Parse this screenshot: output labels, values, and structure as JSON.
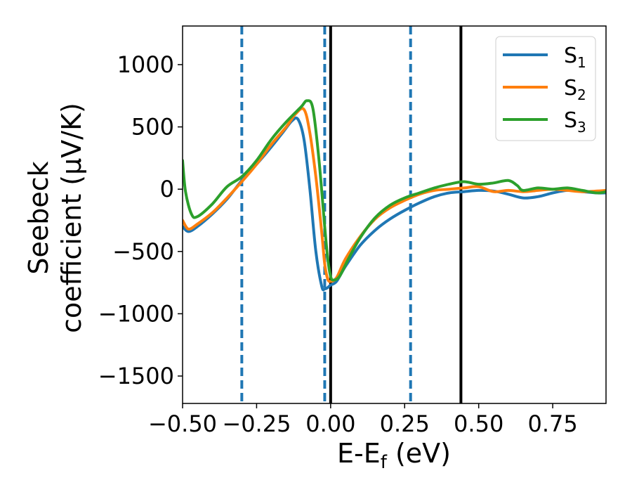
{
  "chart_data": {
    "type": "line",
    "xlabel": "E-E",
    "xlabel_sub": "f",
    "xlabel_unit": " (eV)",
    "ylabel_line1": "Seebeck",
    "ylabel_line2": "coefficient  (μV/K)",
    "xlim": [
      -0.5,
      0.93
    ],
    "ylim": [
      -1720,
      1310
    ],
    "x_ticks": [
      -0.5,
      -0.25,
      0.0,
      0.25,
      0.5,
      0.75
    ],
    "x_tick_labels": [
      "−0.50",
      "−0.25",
      "0.00",
      "0.25",
      "0.50",
      "0.75"
    ],
    "y_ticks": [
      -1500,
      -1000,
      -500,
      0,
      500,
      1000
    ],
    "y_tick_labels": [
      "−1500",
      "−1000",
      "−500",
      "0",
      "500",
      "1000"
    ],
    "grid": false,
    "legend_position": "top-right",
    "series": [
      {
        "name": "S",
        "name_sub": "1",
        "color": "#1f77b4",
        "points": [
          [
            -0.5,
            -300
          ],
          [
            -0.48,
            -340
          ],
          [
            -0.45,
            -300
          ],
          [
            -0.4,
            -200
          ],
          [
            -0.35,
            -80
          ],
          [
            -0.3,
            70
          ],
          [
            -0.25,
            200
          ],
          [
            -0.2,
            340
          ],
          [
            -0.16,
            460
          ],
          [
            -0.13,
            550
          ],
          [
            -0.11,
            560
          ],
          [
            -0.09,
            400
          ],
          [
            -0.07,
            0
          ],
          [
            -0.05,
            -500
          ],
          [
            -0.03,
            -780
          ],
          [
            -0.02,
            -800
          ],
          [
            -0.01,
            -790
          ],
          [
            0.0,
            -770
          ],
          [
            0.02,
            -740
          ],
          [
            0.05,
            -620
          ],
          [
            0.1,
            -450
          ],
          [
            0.15,
            -330
          ],
          [
            0.2,
            -240
          ],
          [
            0.25,
            -170
          ],
          [
            0.3,
            -110
          ],
          [
            0.35,
            -60
          ],
          [
            0.4,
            -30
          ],
          [
            0.45,
            -20
          ],
          [
            0.5,
            -10
          ],
          [
            0.55,
            -15
          ],
          [
            0.6,
            -40
          ],
          [
            0.65,
            -70
          ],
          [
            0.7,
            -60
          ],
          [
            0.75,
            -30
          ],
          [
            0.8,
            -10
          ],
          [
            0.85,
            -20
          ],
          [
            0.9,
            -30
          ],
          [
            0.93,
            -30
          ]
        ]
      },
      {
        "name": "S",
        "name_sub": "2",
        "color": "#ff7f0e",
        "points": [
          [
            -0.5,
            -250
          ],
          [
            -0.48,
            -320
          ],
          [
            -0.45,
            -280
          ],
          [
            -0.4,
            -190
          ],
          [
            -0.35,
            -70
          ],
          [
            -0.3,
            60
          ],
          [
            -0.25,
            200
          ],
          [
            -0.2,
            360
          ],
          [
            -0.15,
            500
          ],
          [
            -0.12,
            600
          ],
          [
            -0.09,
            640
          ],
          [
            -0.07,
            450
          ],
          [
            -0.05,
            100
          ],
          [
            -0.03,
            -350
          ],
          [
            -0.02,
            -600
          ],
          [
            -0.01,
            -720
          ],
          [
            0.0,
            -740
          ],
          [
            0.02,
            -710
          ],
          [
            0.05,
            -560
          ],
          [
            0.1,
            -380
          ],
          [
            0.15,
            -240
          ],
          [
            0.2,
            -150
          ],
          [
            0.25,
            -90
          ],
          [
            0.3,
            -40
          ],
          [
            0.35,
            -10
          ],
          [
            0.4,
            0
          ],
          [
            0.45,
            10
          ],
          [
            0.5,
            20
          ],
          [
            0.55,
            -20
          ],
          [
            0.6,
            -10
          ],
          [
            0.65,
            -20
          ],
          [
            0.7,
            -10
          ],
          [
            0.75,
            0
          ],
          [
            0.8,
            -10
          ],
          [
            0.85,
            -20
          ],
          [
            0.9,
            -15
          ],
          [
            0.93,
            -10
          ]
        ]
      },
      {
        "name": "S",
        "name_sub": "3",
        "color": "#2ca02c",
        "points": [
          [
            -0.5,
            230
          ],
          [
            -0.49,
            -20
          ],
          [
            -0.47,
            -200
          ],
          [
            -0.45,
            -220
          ],
          [
            -0.4,
            -120
          ],
          [
            -0.35,
            20
          ],
          [
            -0.3,
            100
          ],
          [
            -0.25,
            230
          ],
          [
            -0.2,
            400
          ],
          [
            -0.15,
            540
          ],
          [
            -0.1,
            660
          ],
          [
            -0.08,
            710
          ],
          [
            -0.06,
            650
          ],
          [
            -0.04,
            250
          ],
          [
            -0.02,
            -300
          ],
          [
            -0.01,
            -550
          ],
          [
            0.0,
            -700
          ],
          [
            0.01,
            -730
          ],
          [
            0.03,
            -700
          ],
          [
            0.06,
            -560
          ],
          [
            0.1,
            -390
          ],
          [
            0.15,
            -230
          ],
          [
            0.2,
            -130
          ],
          [
            0.25,
            -70
          ],
          [
            0.3,
            -30
          ],
          [
            0.35,
            10
          ],
          [
            0.4,
            40
          ],
          [
            0.45,
            60
          ],
          [
            0.5,
            40
          ],
          [
            0.55,
            50
          ],
          [
            0.6,
            70
          ],
          [
            0.63,
            30
          ],
          [
            0.65,
            -10
          ],
          [
            0.7,
            10
          ],
          [
            0.75,
            0
          ],
          [
            0.8,
            10
          ],
          [
            0.85,
            -10
          ],
          [
            0.9,
            -30
          ],
          [
            0.93,
            -20
          ]
        ]
      }
    ],
    "vertical_lines": [
      {
        "x": -0.3,
        "style": "dashed",
        "color": "#1f77b4"
      },
      {
        "x": -0.02,
        "style": "dashed",
        "color": "#1f77b4"
      },
      {
        "x": 0.27,
        "style": "dashed",
        "color": "#1f77b4"
      },
      {
        "x": 0.0,
        "style": "solid",
        "color": "#000000"
      },
      {
        "x": 0.44,
        "style": "solid",
        "color": "#000000"
      }
    ]
  }
}
